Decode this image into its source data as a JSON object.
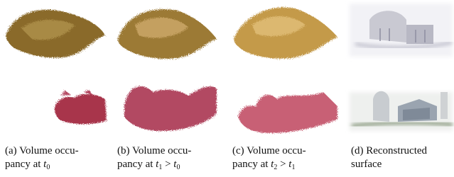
{
  "figure": {
    "panels": [
      {
        "caption_lines": [
          [
            {
              "text": "(a) Volume occu-"
            }
          ],
          [
            {
              "text": "pancy at "
            },
            {
              "italic": "t",
              "sub": "0"
            }
          ]
        ]
      },
      {
        "caption_lines": [
          [
            {
              "text": "(b) Volume occu-"
            }
          ],
          [
            {
              "text": "pancy at "
            },
            {
              "italic": "t",
              "sub": "1"
            },
            {
              "text": " > "
            },
            {
              "italic": "t",
              "sub": "0"
            }
          ]
        ]
      },
      {
        "caption_lines": [
          [
            {
              "text": "(c) Volume occu-"
            }
          ],
          [
            {
              "text": "pancy at "
            },
            {
              "italic": "t",
              "sub": "2"
            },
            {
              "text": " > "
            },
            {
              "italic": "t",
              "sub": "1"
            }
          ]
        ]
      },
      {
        "caption_lines": [
          [
            {
              "text": "(d) Reconstructed"
            }
          ],
          [
            {
              "text": "surface"
            }
          ]
        ]
      }
    ]
  }
}
